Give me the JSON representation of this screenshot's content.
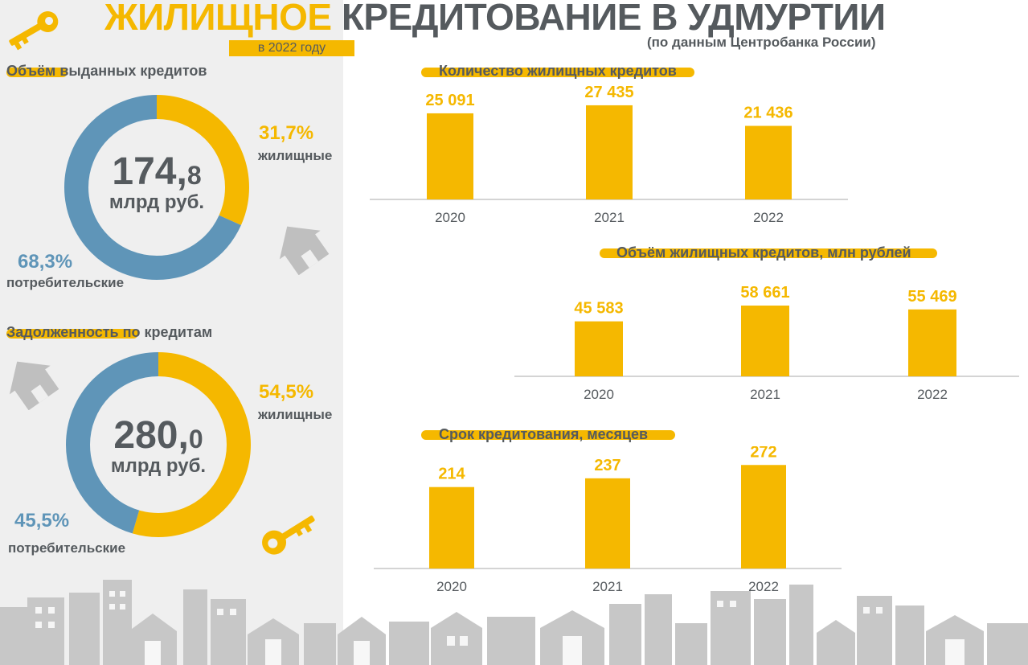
{
  "header": {
    "title_highlight": "ЖИЛИЩНОЕ",
    "title_rest": " КРЕДИТОВАНИЕ В УДМУРТИИ",
    "year_badge": "в 2022 году",
    "source": "(по данным Центробанка России)"
  },
  "colors": {
    "accent": "#f5b800",
    "consumer": "#5f95b8",
    "text": "#555a5e",
    "panel": "#efefef"
  },
  "chart_data": [
    {
      "type": "pie",
      "id": "volume",
      "title_highlight": "Объём",
      "title_rest": " выданных кредитов",
      "center_int": "174,",
      "center_dec": "8",
      "center_unit": "млрд руб.",
      "slices": [
        {
          "label": "жилищные",
          "value": 31.7,
          "display": "31,7%"
        },
        {
          "label": "потребительские",
          "value": 68.3,
          "display": "68,3%"
        }
      ]
    },
    {
      "type": "pie",
      "id": "debt",
      "title_highlight": "Задолженность",
      "title_rest": " по кредитам",
      "center_int": "280,",
      "center_dec": "0",
      "center_unit": "млрд руб.",
      "slices": [
        {
          "label": "жилищные",
          "value": 54.5,
          "display": "54,5%"
        },
        {
          "label": "потребительские",
          "value": 45.5,
          "display": "45,5%"
        }
      ]
    },
    {
      "type": "bar",
      "id": "count",
      "title": "Количество жилищных кредитов",
      "categories": [
        "2020",
        "2021",
        "2022"
      ],
      "values": [
        25091,
        27435,
        21436
      ],
      "labels": [
        "25 091",
        "27 435",
        "21 436"
      ],
      "ylim": [
        0,
        30000
      ]
    },
    {
      "type": "bar",
      "id": "amount",
      "title": "Объём жилищных кредитов, млн рублей",
      "categories": [
        "2020",
        "2021",
        "2022"
      ],
      "values": [
        45583,
        58661,
        55469
      ],
      "labels": [
        "45 583",
        "58 661",
        "55 469"
      ],
      "ylim": [
        0,
        80000
      ]
    },
    {
      "type": "bar",
      "id": "term",
      "title": "Срок кредитования, месяцев",
      "categories": [
        "2020",
        "2021",
        "2022"
      ],
      "values": [
        214,
        237,
        272
      ],
      "labels": [
        "214",
        "237",
        "272"
      ],
      "ylim": [
        0,
        300
      ]
    }
  ]
}
